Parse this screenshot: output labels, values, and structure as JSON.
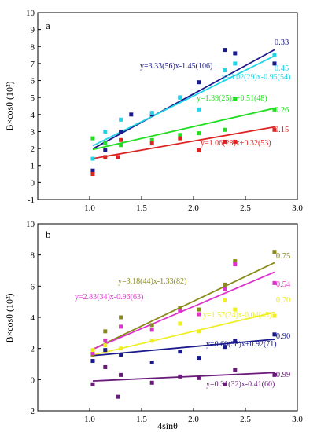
{
  "chart_data": [
    {
      "type": "scatter",
      "panel_label": "a",
      "title": "",
      "xlabel": "",
      "ylabel": "B×cosθ (10²)",
      "xlim": [
        0.5,
        3.0
      ],
      "ylim": [
        -1,
        10
      ],
      "xticks": [
        "1.0",
        "1.5",
        "2.0",
        "2.5",
        "3.0"
      ],
      "yticks": [
        "-1",
        "0",
        "1",
        "2",
        "3",
        "4",
        "5",
        "6",
        "7",
        "8",
        "9",
        "10"
      ],
      "series": [
        {
          "label": "0.33",
          "equation": "y=3.33(56)x-1.45(106)",
          "color": "#1a1a8c",
          "fit": [
            [
              1.03,
              1.98
            ],
            [
              2.78,
              7.81
            ]
          ],
          "points": [
            [
              1.03,
              0.7
            ],
            [
              1.15,
              1.9
            ],
            [
              1.3,
              3.0
            ],
            [
              1.4,
              4.0
            ],
            [
              1.6,
              4.0
            ],
            [
              1.87,
              5.0
            ],
            [
              2.05,
              5.9
            ],
            [
              2.3,
              7.8
            ],
            [
              2.4,
              7.6
            ],
            [
              2.78,
              7.0
            ]
          ]
        },
        {
          "label": "0.45",
          "equation": "y=3.02(29)x-0.95(54)",
          "color": "#22d4e6",
          "fit": [
            [
              1.03,
              2.16
            ],
            [
              2.78,
              7.45
            ]
          ],
          "points": [
            [
              1.03,
              1.4
            ],
            [
              1.15,
              3.0
            ],
            [
              1.3,
              3.7
            ],
            [
              1.6,
              4.1
            ],
            [
              1.87,
              5.0
            ],
            [
              2.05,
              4.3
            ],
            [
              2.3,
              6.6
            ],
            [
              2.4,
              7.0
            ],
            [
              2.78,
              7.5
            ]
          ]
        },
        {
          "label": "0.26",
          "equation": "y=1.39(25)x+0.51(48)",
          "color": "#22dd22",
          "fit": [
            [
              1.03,
              1.94
            ],
            [
              2.78,
              4.37
            ]
          ],
          "points": [
            [
              1.03,
              2.6
            ],
            [
              1.15,
              2.3
            ],
            [
              1.3,
              2.2
            ],
            [
              1.6,
              2.5
            ],
            [
              1.87,
              2.8
            ],
            [
              2.05,
              2.9
            ],
            [
              2.3,
              3.1
            ],
            [
              2.4,
              4.9
            ],
            [
              2.78,
              4.3
            ]
          ]
        },
        {
          "label": "0.15",
          "equation": "y=1.06(28)x+0.32(53)",
          "color": "#dd2222",
          "fit": [
            [
              1.03,
              1.41
            ],
            [
              2.78,
              3.27
            ]
          ],
          "points": [
            [
              1.03,
              0.5
            ],
            [
              1.15,
              1.5
            ],
            [
              1.27,
              1.5
            ],
            [
              1.3,
              2.5
            ],
            [
              1.6,
              2.3
            ],
            [
              1.87,
              2.6
            ],
            [
              2.05,
              1.9
            ],
            [
              2.3,
              2.4
            ],
            [
              2.4,
              2.4
            ],
            [
              2.78,
              3.1
            ]
          ]
        }
      ]
    },
    {
      "type": "scatter",
      "panel_label": "b",
      "title": "",
      "xlabel": "4sinθ",
      "ylabel": "B×cosθ (10²)",
      "xlim": [
        0.5,
        3.0
      ],
      "ylim": [
        -2,
        10
      ],
      "xticks": [
        "1.0",
        "1.5",
        "2.0",
        "2.5",
        "3.0"
      ],
      "yticks": [
        "-2",
        "0",
        "2",
        "4",
        "6",
        "8",
        "10"
      ],
      "series": [
        {
          "label": "0.75",
          "equation": "y=3.18(44)x-1.33(82)",
          "color": "#8a8a1a",
          "fit": [
            [
              1.03,
              1.95
            ],
            [
              2.78,
              7.51
            ]
          ],
          "points": [
            [
              1.03,
              1.6
            ],
            [
              1.15,
              3.1
            ],
            [
              1.3,
              4.0
            ],
            [
              1.6,
              3.5
            ],
            [
              1.87,
              4.6
            ],
            [
              2.05,
              4.5
            ],
            [
              2.3,
              6.1
            ],
            [
              2.4,
              7.6
            ],
            [
              2.78,
              8.2
            ]
          ]
        },
        {
          "label": "0.54",
          "equation": "y=2.83(34)x-0.96(63)",
          "color": "#dd33cc",
          "fit": [
            [
              1.03,
              1.95
            ],
            [
              2.78,
              6.9
            ]
          ],
          "points": [
            [
              1.03,
              1.7
            ],
            [
              1.15,
              2.5
            ],
            [
              1.3,
              3.4
            ],
            [
              1.6,
              3.2
            ],
            [
              1.87,
              4.4
            ],
            [
              2.05,
              4.2
            ],
            [
              2.3,
              5.8
            ],
            [
              2.4,
              7.4
            ],
            [
              2.78,
              6.2
            ]
          ]
        },
        {
          "label": "0.70",
          "equation": "y=1.57(24)x-0.04(45)",
          "color": "#eeee22",
          "fit": [
            [
              1.03,
              1.58
            ],
            [
              2.78,
              4.32
            ]
          ],
          "points": [
            [
              1.03,
              1.9
            ],
            [
              1.15,
              2.2
            ],
            [
              1.3,
              2.0
            ],
            [
              1.6,
              2.5
            ],
            [
              1.87,
              3.6
            ],
            [
              2.05,
              3.1
            ],
            [
              2.3,
              5.1
            ],
            [
              2.4,
              4.5
            ],
            [
              2.78,
              4.1
            ]
          ]
        },
        {
          "label": "0.90",
          "equation": "y=0.60(38)x+0.92(71)",
          "color": "#1a1a8c",
          "fit": [
            [
              1.03,
              1.54
            ],
            [
              2.78,
              2.59
            ]
          ],
          "points": [
            [
              1.03,
              1.2
            ],
            [
              1.15,
              1.9
            ],
            [
              1.3,
              1.6
            ],
            [
              1.6,
              1.1
            ],
            [
              1.87,
              1.8
            ],
            [
              2.05,
              1.4
            ],
            [
              2.3,
              2.1
            ],
            [
              2.4,
              2.5
            ],
            [
              2.78,
              2.9
            ]
          ]
        },
        {
          "label": "0.99",
          "equation": "y=0.31(32)x-0.41(60)",
          "color": "#6a1a7a",
          "fit": [
            [
              1.03,
              -0.09
            ],
            [
              2.78,
              0.45
            ]
          ],
          "points": [
            [
              1.03,
              -0.3
            ],
            [
              1.15,
              0.8
            ],
            [
              1.27,
              -1.1
            ],
            [
              1.3,
              0.3
            ],
            [
              1.6,
              -0.2
            ],
            [
              1.87,
              0.2
            ],
            [
              2.05,
              0.1
            ],
            [
              2.3,
              -0.3
            ],
            [
              2.4,
              0.6
            ],
            [
              2.78,
              0.3
            ]
          ]
        }
      ]
    }
  ]
}
